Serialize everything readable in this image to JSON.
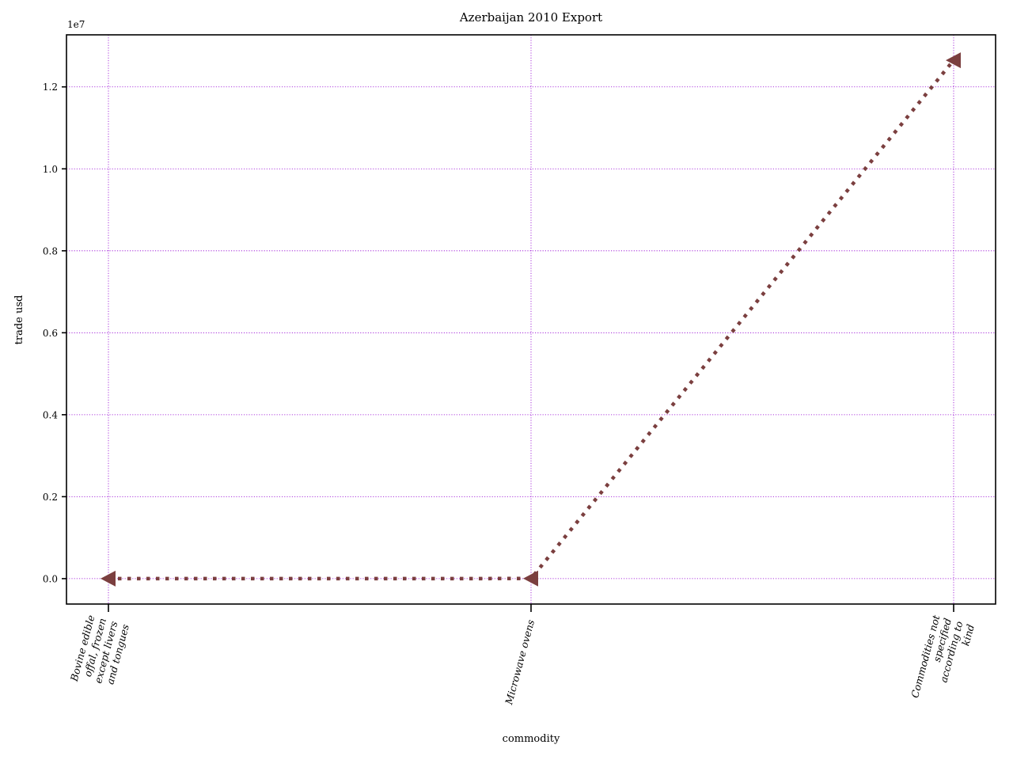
{
  "chart_data": {
    "type": "line",
    "title": "Azerbaijan 2010 Export",
    "xlabel": "commodity",
    "ylabel": "trade usd",
    "y_offset_text": "1e7",
    "y_scale": 10000000,
    "categories": [
      [
        "Bovine edible",
        "offal, frozen",
        "except livers",
        "and tongues"
      ],
      [
        "Microwave ovens"
      ],
      [
        "Commodities not",
        "specified",
        "according to",
        "kind"
      ]
    ],
    "series": [
      {
        "values": [
          0,
          2000,
          12650000
        ]
      }
    ],
    "ylim": [
      -620000,
      13270000
    ],
    "yticks": [
      0.0,
      0.2,
      0.4,
      0.6,
      0.8,
      1.0,
      1.2
    ],
    "ytick_labels": [
      "0.0",
      "0.2",
      "0.4",
      "0.6",
      "0.8",
      "1.0",
      "1.2"
    ],
    "grid": true,
    "colors": {
      "series": "#7b3f3f",
      "grid": "#9400d3"
    }
  }
}
